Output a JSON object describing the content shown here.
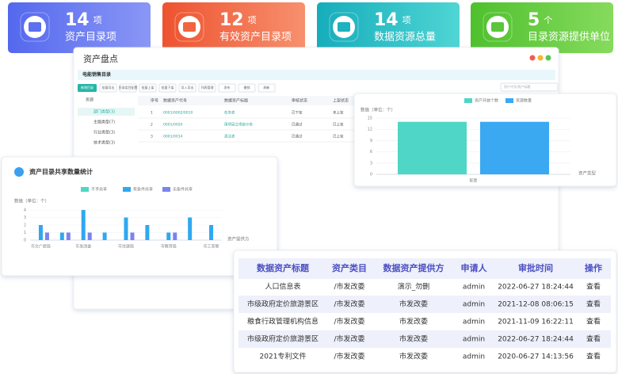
{
  "stat_cards": [
    {
      "value": "14",
      "unit": "项",
      "label": "资产目录项"
    },
    {
      "value": "12",
      "unit": "项",
      "label": "有效资产目录项"
    },
    {
      "value": "14",
      "unit": "项",
      "label": "数据资源总量"
    },
    {
      "value": "5",
      "unit": "个",
      "label": "目录资源提供单位"
    }
  ],
  "main_panel": {
    "title": "资产盘点",
    "catalog": "电能销售目录",
    "toolbar": [
      "新增目录",
      "批量导出",
      "目录类目配置",
      "批量上架",
      "批量下架",
      "导入导出",
      "列表管理",
      "发布",
      "撤销",
      "刷新"
    ],
    "search_placeholder": "资产代号/资产标题",
    "tree": [
      "资源",
      "部门类型(3)",
      "主题类型(7)",
      "行业类型(3)",
      "技术类型(3)"
    ],
    "table": {
      "headers": [
        "序号",
        "数据资产代号",
        "数据资产标题",
        "审核状态",
        "上架状态"
      ],
      "rows": [
        [
          "1",
          "0001/0002/0010",
          "任务表",
          "已下架",
          "未上架"
        ],
        [
          "2",
          "0001/0020",
          "用项目立项统计表",
          "已通过",
          "已上架"
        ],
        [
          "3",
          "0001/0014",
          "清洁表",
          "已通过",
          "已上架"
        ]
      ]
    }
  },
  "chart_data": [
    {
      "type": "bar",
      "y_label": "数值（单位：个）",
      "x_label": "资产类型",
      "categories": [
        "配置"
      ],
      "series": [
        {
          "name": "资产开放个数",
          "color": "#4fd6c6",
          "values": [
            14
          ]
        },
        {
          "name": "资源数量",
          "color": "#3aa9f2",
          "values": [
            14
          ]
        }
      ],
      "ylim": [
        0,
        15
      ],
      "yticks": [
        0,
        3,
        6,
        9,
        12,
        15
      ],
      "grid": true
    },
    {
      "type": "bar",
      "title": "资产目录共享数量统计",
      "y_label": "数值（单位：个）",
      "x_label": "资产提供方",
      "categories": [
        "市文广旅局",
        null,
        "市发改委",
        null,
        "市住建局",
        null,
        "市教育局",
        null,
        "市工商联"
      ],
      "series": [
        {
          "name": "不予共享",
          "color": "#4fd6c6",
          "values": [
            0,
            0,
            0,
            0,
            0,
            0,
            0,
            0,
            0
          ]
        },
        {
          "name": "有条件共享",
          "color": "#2fa8f0",
          "values": [
            2,
            1,
            4,
            1,
            3,
            2,
            1,
            3,
            2
          ]
        },
        {
          "name": "无条件共享",
          "color": "#7b83f0",
          "values": [
            1,
            1,
            1,
            0,
            1,
            0,
            1,
            0,
            0
          ]
        }
      ],
      "ylim": [
        0,
        4
      ],
      "yticks": [
        0,
        1,
        2,
        3,
        4
      ],
      "grid": true
    }
  ],
  "approval_table": {
    "headers": [
      "数据资产标题",
      "资产类目",
      "数据资产提供方",
      "申请人",
      "审批时间",
      "操作"
    ],
    "rows": [
      [
        "人口信息表",
        "/市发改委",
        "演示_勿删",
        "admin",
        "2022-06-27 18:24:44",
        "查看"
      ],
      [
        "市级政府定价旅游景区",
        "/市发改委",
        "市发改委",
        "admin",
        "2021-12-08 08:06:15",
        "查看"
      ],
      [
        "粮食行政管理机构信息",
        "/市发改委",
        "市发改委",
        "admin",
        "2021-11-09 16:22:11",
        "查看"
      ],
      [
        "市级政府定价旅游景区",
        "/市发改委",
        "市发改委",
        "admin",
        "2022-06-27 18:24:44",
        "查看"
      ],
      [
        "2021专利文件",
        "/市发改委",
        "市发改委",
        "admin",
        "2020-06-27 14:13:56",
        "查看"
      ]
    ]
  }
}
